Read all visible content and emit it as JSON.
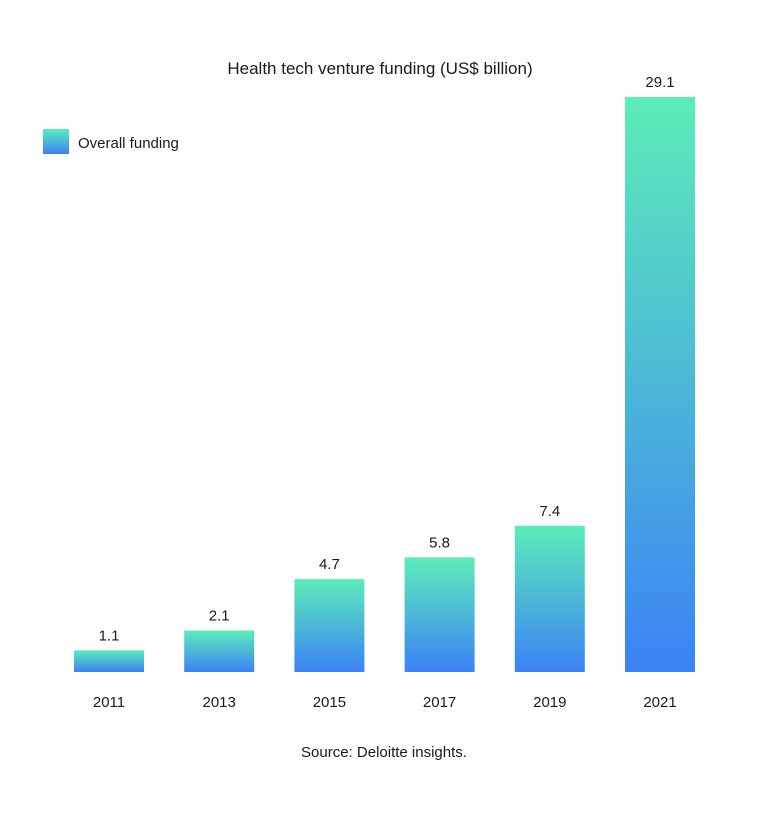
{
  "chart_data": {
    "type": "bar",
    "title": "Health tech venture funding (US$ billion)",
    "categories": [
      "2011",
      "2013",
      "2015",
      "2017",
      "2019",
      "2021"
    ],
    "series": [
      {
        "name": "Overall funding",
        "values": [
          1.1,
          2.1,
          4.7,
          5.8,
          7.4,
          29.1
        ]
      }
    ],
    "data_labels": [
      "1.1",
      "2.1",
      "4.7",
      "5.8",
      "7.4",
      "29.1"
    ],
    "xlabel": "",
    "ylabel": "",
    "ylim": [
      0,
      29.1
    ],
    "grid": false,
    "legend_position": "top-left",
    "source": "Source: Deloitte insights.",
    "colors": {
      "gradient_top": "#5CEDB8",
      "gradient_bottom": "#3B82F6"
    }
  }
}
